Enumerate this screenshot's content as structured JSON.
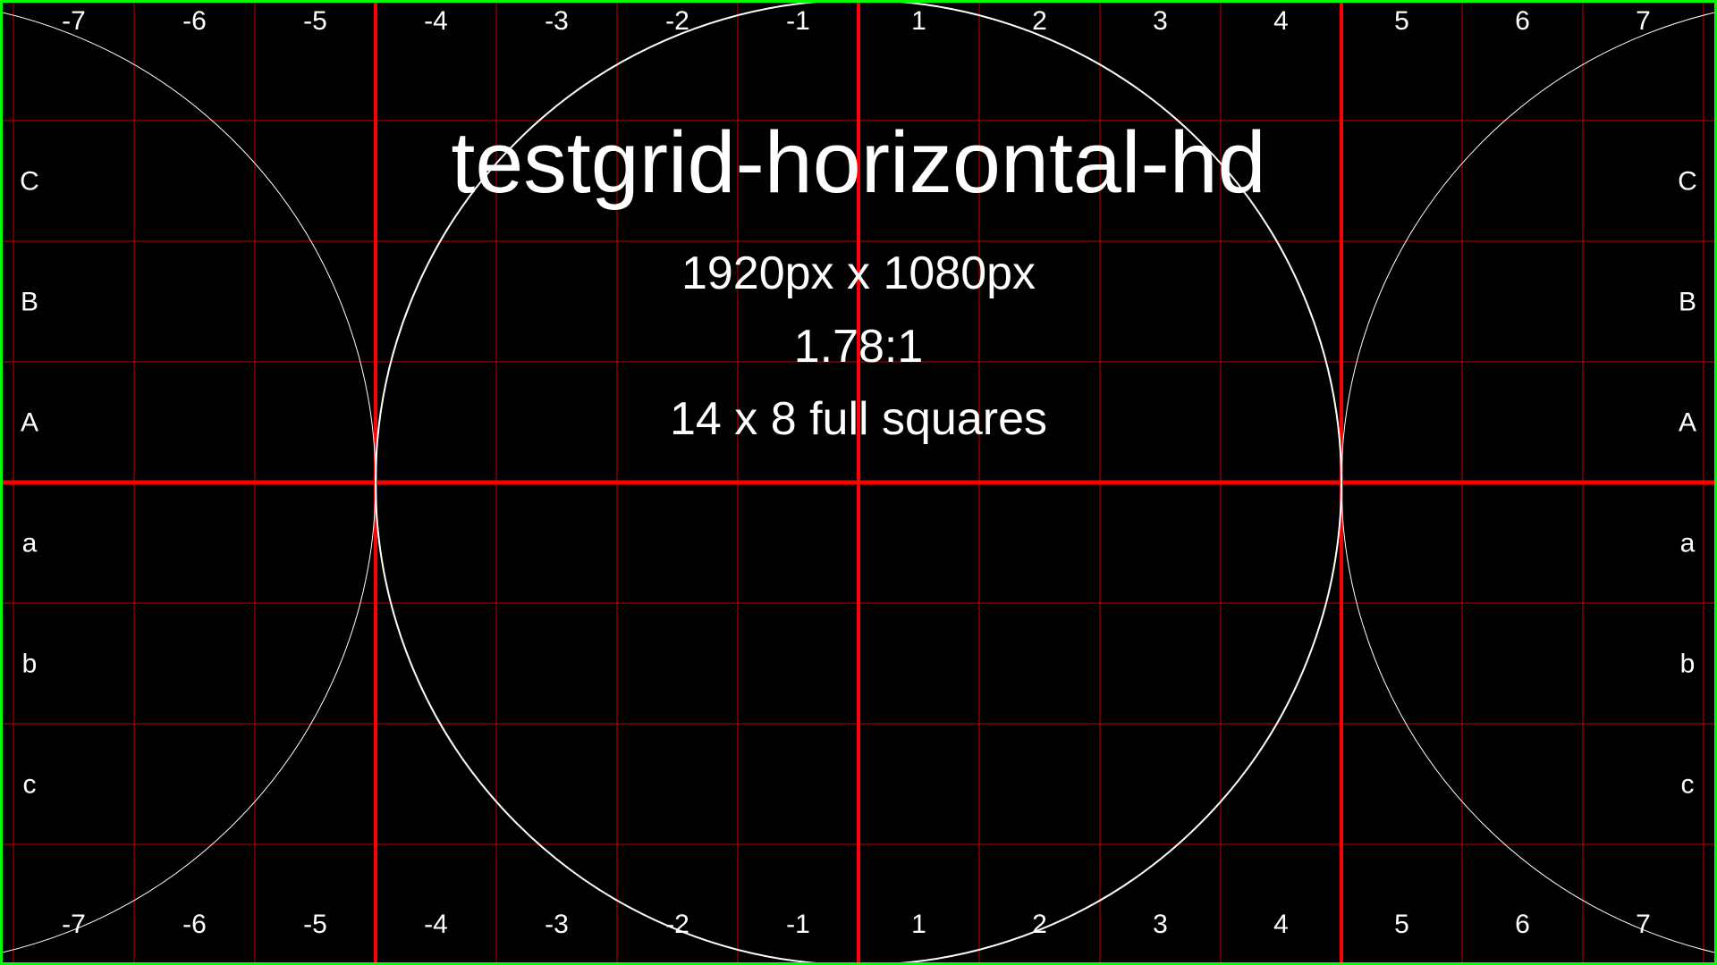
{
  "title": "testgrid-horizontal-hd",
  "subtitle_resolution": "1920px x 1080px",
  "subtitle_ratio": "1.78:1",
  "subtitle_squares": "14 x 8 full squares",
  "column_labels": [
    "-7",
    "-6",
    "-5",
    "-4",
    "-3",
    "-2",
    "-1",
    "1",
    "2",
    "3",
    "4",
    "5",
    "6",
    "7"
  ],
  "row_labels": [
    "C",
    "B",
    "A",
    "a",
    "b",
    "c"
  ],
  "colors": {
    "background": "#000000",
    "border": "#00ff00",
    "grid_thin": "#cc0000",
    "grid_bold": "#ff0000",
    "circle": "#ffffff",
    "text": "#ffffff"
  }
}
